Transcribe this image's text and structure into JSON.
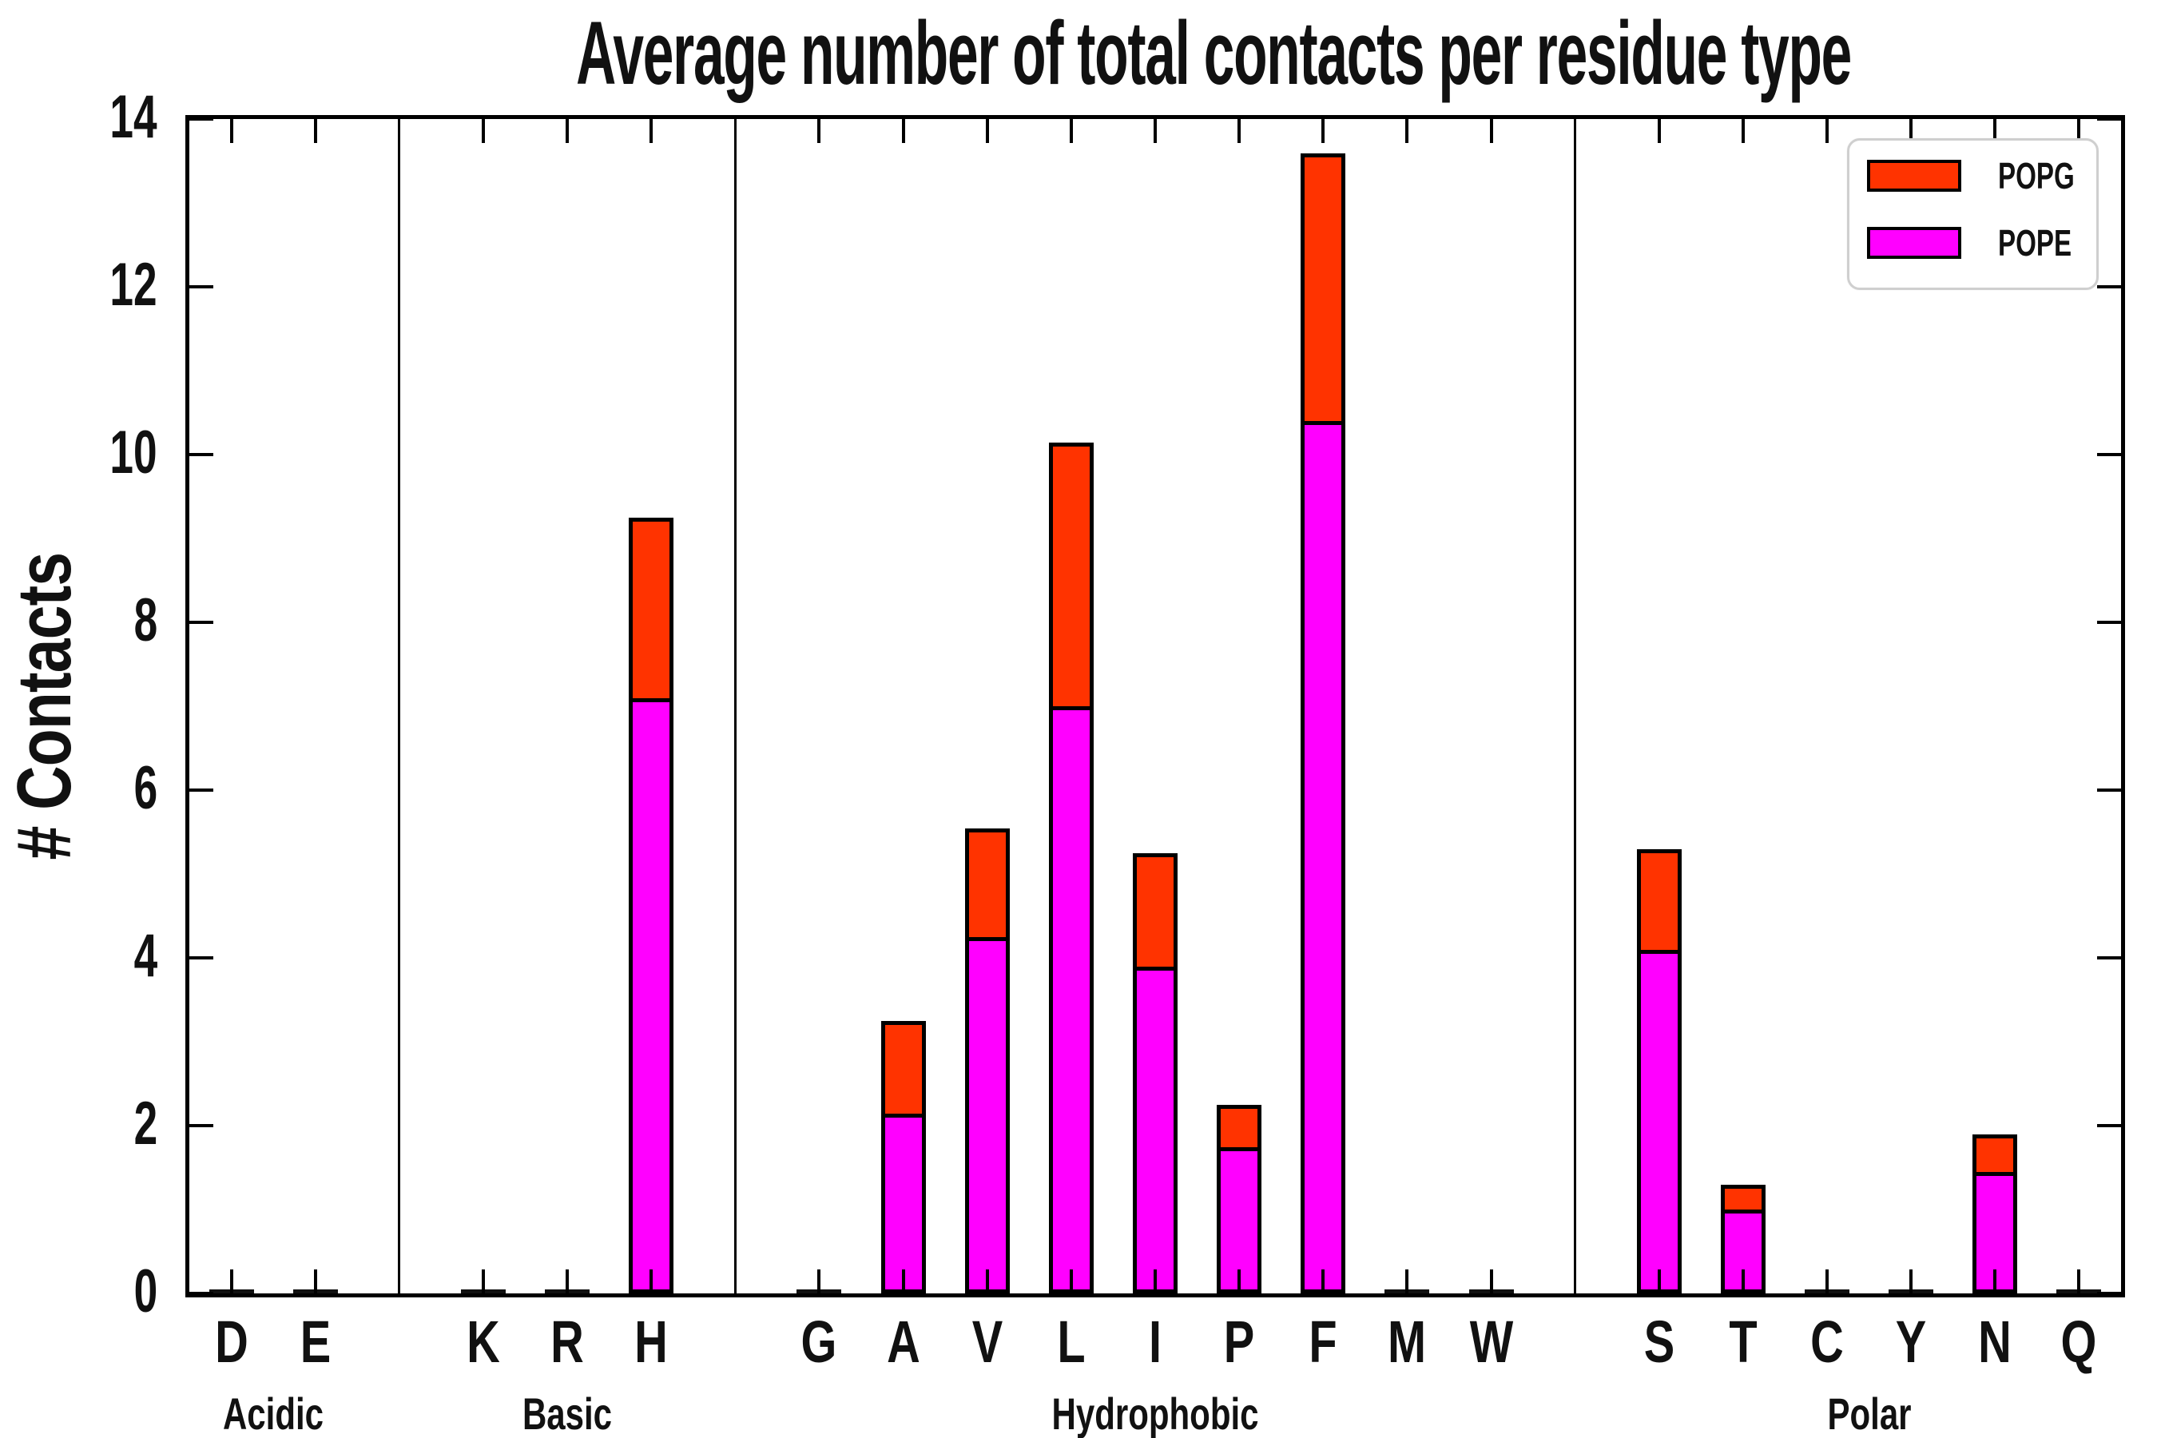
{
  "title": "Average number of total contacts per residue type",
  "ylabel": "# Contacts",
  "legend": [
    {
      "label": "POPG",
      "color": "#ff3300"
    },
    {
      "label": "POPE",
      "color": "#ff00ff"
    }
  ],
  "chart_data": {
    "type": "bar",
    "stacked": true,
    "title": "Average number of total contacts per residue type",
    "xlabel": "",
    "ylabel": "# Contacts",
    "ylim": [
      0,
      14
    ],
    "yticks": [
      0,
      2,
      4,
      6,
      8,
      10,
      12,
      14
    ],
    "grid": false,
    "legend_position": "upper right",
    "slots": [
      "D",
      "E",
      "|",
      "K",
      "R",
      "H",
      "|",
      "G",
      "A",
      "V",
      "L",
      "I",
      "P",
      "F",
      "M",
      "W",
      "|",
      "S",
      "T",
      "C",
      "Y",
      "N",
      "Q"
    ],
    "categories": [
      "D",
      "E",
      "K",
      "R",
      "H",
      "G",
      "A",
      "V",
      "L",
      "I",
      "P",
      "F",
      "M",
      "W",
      "S",
      "T",
      "C",
      "Y",
      "N",
      "Q"
    ],
    "groups": [
      {
        "label": "Acidic",
        "center_slot": 1.0
      },
      {
        "label": "Basic",
        "center_slot": 4.5
      },
      {
        "label": "Hydrophobic",
        "center_slot": 11.5
      },
      {
        "label": "Polar",
        "center_slot": 20.0
      }
    ],
    "series": [
      {
        "name": "POPE",
        "color": "#ff00ff",
        "values": [
          0.02,
          0.02,
          0.02,
          0.02,
          7.05,
          0.02,
          2.1,
          4.2,
          6.95,
          3.85,
          1.7,
          10.35,
          0.02,
          0.02,
          4.05,
          0.95,
          0.01,
          0.01,
          1.4,
          0.01
        ]
      },
      {
        "name": "POPG",
        "color": "#ff3300",
        "values": [
          0.01,
          0.01,
          0.01,
          0.01,
          2.1,
          0.01,
          1.05,
          1.25,
          3.1,
          1.3,
          0.45,
          3.15,
          0.01,
          0.01,
          1.15,
          0.25,
          0.01,
          0.01,
          0.4,
          0.01
        ]
      }
    ]
  }
}
